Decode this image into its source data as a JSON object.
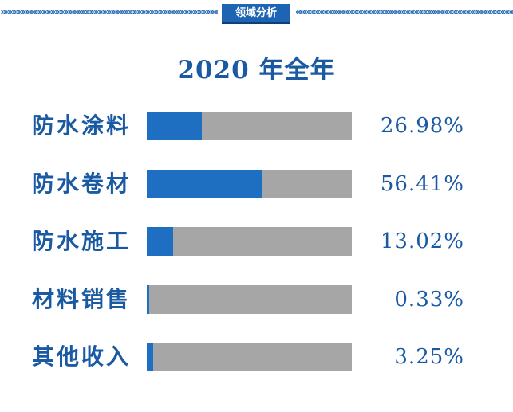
{
  "header": {
    "tag_label": "领域分析",
    "chevron_glyphs": "»»»»»»»»»»»»»»»»»»»»»»»»»»»»»»»»»»»»»»»»»»»»»»»»»»»»",
    "chevron_glyphs_reverse": "««««««««««««««««««««««««««««««««««««««««««««««««««««"
  },
  "chart_data": {
    "type": "bar",
    "orientation": "horizontal",
    "title": "2020 年全年",
    "categories": [
      "防水涂料",
      "防水卷材",
      "防水施工",
      "材料销售",
      "其他收入"
    ],
    "values": [
      26.98,
      56.41,
      13.02,
      0.33,
      3.25
    ],
    "value_labels": [
      "26.98%",
      "56.41%",
      "13.02%",
      "0.33%",
      "3.25%"
    ],
    "xlim": [
      0,
      100
    ],
    "unit": "%",
    "grid": false,
    "legend": "none",
    "colors": {
      "fill": "#1e6fc1",
      "track": "#a6a6a6",
      "text": "#1a5aa3"
    }
  }
}
